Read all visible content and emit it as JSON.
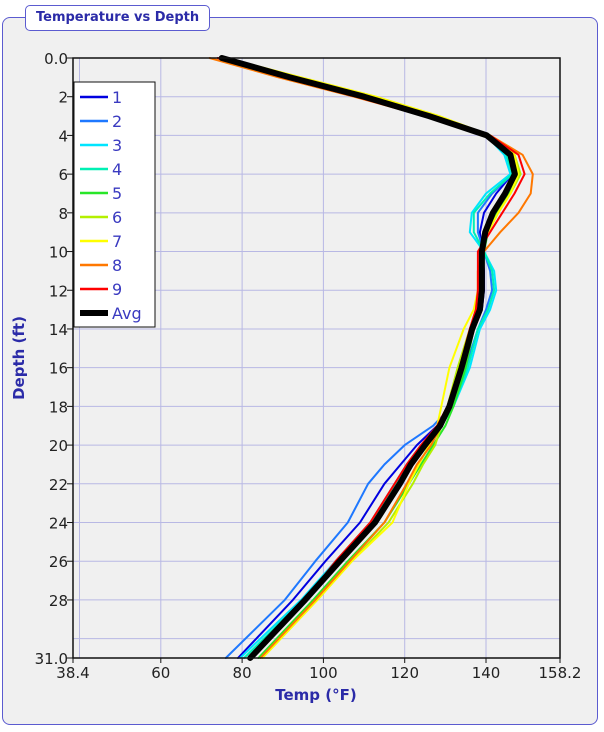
{
  "panel": {
    "title": "Temperature vs Depth"
  },
  "chart_data": {
    "type": "line",
    "title": "Temperature vs Depth",
    "xlabel": "Temp (°F)",
    "ylabel": "Depth (ft)",
    "xlim": [
      38.4,
      158.2
    ],
    "ylim": [
      0,
      31
    ],
    "y_inverted": true,
    "x_ticks": [
      "38.4",
      "60",
      "80",
      "100",
      "120",
      "140",
      "158.2"
    ],
    "x_tick_values": [
      38.4,
      60,
      80,
      100,
      120,
      140,
      158.2
    ],
    "y_ticks": [
      "0.0",
      "2",
      "4",
      "6",
      "8",
      "10",
      "12",
      "14",
      "16",
      "18",
      "20",
      "22",
      "24",
      "26",
      "28",
      "31.0"
    ],
    "y_tick_values": [
      0,
      2,
      4,
      6,
      8,
      10,
      12,
      14,
      16,
      18,
      20,
      22,
      24,
      26,
      28,
      31
    ],
    "grid": true,
    "x_grid_values": [
      40,
      60,
      80,
      100,
      120,
      140
    ],
    "y_grid_values": [
      2,
      4,
      6,
      8,
      10,
      12,
      14,
      16,
      18,
      20,
      22,
      24,
      26,
      28,
      30
    ],
    "legend_position": "top-left",
    "depth": [
      0,
      1,
      2,
      3,
      4,
      5,
      6,
      7,
      8,
      9,
      10,
      11,
      12,
      13,
      14,
      16,
      18,
      19,
      20,
      21,
      22,
      24,
      26,
      28,
      31
    ],
    "series": [
      {
        "name": "1",
        "color": "#0000e0",
        "width": 2,
        "values": [
          75,
          91.5,
          109.5,
          125.5,
          140,
          145.5,
          146.5,
          142.5,
          139.5,
          138.5,
          139,
          139.5,
          139.5,
          139,
          137,
          134,
          131,
          128,
          123,
          119,
          115,
          109,
          100.5,
          92.5,
          79
        ]
      },
      {
        "name": "2",
        "color": "#1e78ff",
        "width": 2,
        "values": [
          74,
          90.5,
          109,
          125.5,
          140,
          145.5,
          146.5,
          141.5,
          138,
          138,
          139.5,
          141,
          141.5,
          140,
          138,
          135,
          131.5,
          127,
          120,
          115,
          111,
          106,
          98,
          90.5,
          76
        ]
      },
      {
        "name": "3",
        "color": "#00e5ff",
        "width": 2,
        "values": [
          75,
          91,
          109.5,
          125,
          140,
          144.5,
          146,
          140,
          136.5,
          136,
          139.5,
          142,
          142.5,
          141,
          138.5,
          136,
          132,
          129,
          124,
          120.5,
          117.5,
          111.5,
          103,
          94.5,
          79.5
        ]
      },
      {
        "name": "4",
        "color": "#00f0b4",
        "width": 2,
        "values": [
          75,
          91.5,
          110,
          125.5,
          140,
          145,
          146.5,
          141,
          137,
          137,
          139.5,
          141.5,
          142,
          140.5,
          138,
          135.5,
          132,
          129,
          124.5,
          121,
          118,
          112,
          103.5,
          95,
          80.5
        ]
      },
      {
        "name": "5",
        "color": "#28e628",
        "width": 2,
        "values": [
          75,
          92.5,
          111,
          127,
          141,
          147,
          148,
          145.5,
          142.5,
          140.5,
          139.5,
          139,
          139,
          138.5,
          137,
          135,
          132,
          130,
          127,
          124,
          121,
          115,
          106,
          97.5,
          84
        ]
      },
      {
        "name": "6",
        "color": "#b4f000",
        "width": 2,
        "values": [
          76,
          93,
          111.5,
          127.5,
          141,
          147,
          148.5,
          146,
          143,
          140.5,
          139,
          138.5,
          138.5,
          138,
          136,
          133,
          130.5,
          129,
          127.5,
          124.5,
          122,
          116,
          107,
          98.5,
          85
        ]
      },
      {
        "name": "7",
        "color": "#ffff00",
        "width": 2,
        "values": [
          76,
          94.5,
          113,
          128.5,
          141,
          147,
          148,
          146,
          143,
          140.5,
          139,
          138,
          138,
          137,
          134.5,
          131,
          129,
          128,
          126,
          123.5,
          121,
          117,
          107,
          98.5,
          85
        ]
      },
      {
        "name": "8",
        "color": "#ff7800",
        "width": 2,
        "values": [
          72,
          89,
          107.5,
          125,
          141,
          149,
          151.5,
          151,
          148,
          143.5,
          139.5,
          138,
          138,
          137.5,
          136,
          134,
          131,
          129,
          126.5,
          123,
          120.5,
          115,
          106.5,
          98,
          84.5
        ]
      },
      {
        "name": "9",
        "color": "#ff0000",
        "width": 2,
        "values": [
          74,
          90,
          108,
          125,
          141,
          148,
          149.5,
          147,
          144,
          141,
          138,
          138,
          138,
          137.5,
          136,
          133.5,
          130.5,
          128,
          124,
          120.5,
          117.5,
          111.5,
          103,
          95.5,
          82
        ]
      },
      {
        "name": "Avg",
        "color": "#000000",
        "width": 6,
        "values": [
          75,
          91.8,
          110,
          126,
          140.2,
          146,
          147.1,
          144.7,
          141.7,
          139.8,
          139,
          139,
          139,
          138.5,
          136.6,
          134,
          131,
          128.7,
          125,
          121.5,
          118.8,
          112.7,
          104,
          95.5,
          82
        ]
      }
    ]
  }
}
